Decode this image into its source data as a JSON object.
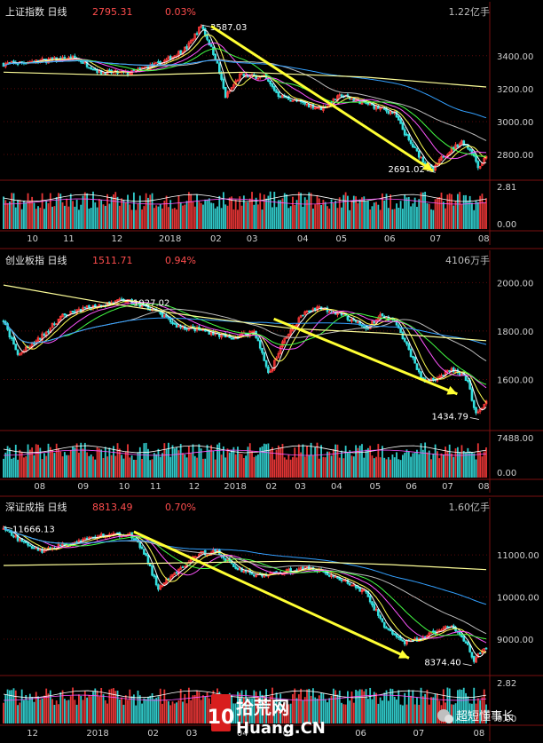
{
  "colors": {
    "background": "#000000",
    "panel_border": "#7a1010",
    "up": "#ff3b3b",
    "down": "#35e0e0",
    "arrow": "#ffff33",
    "ma_white": "#ffffff",
    "ma_yellow": "#ffff55",
    "ma_magenta": "#ff55ff",
    "ma_green": "#44ff44",
    "ma_gray": "#bbbbbb",
    "ma_blue": "#33a0ff",
    "ma_lightyellow": "#ffff99",
    "header_value": "#ff4d4d"
  },
  "watermark": {
    "site_cn": "拾荒网",
    "site_en": "Huang.CN",
    "logo_text": "10",
    "account": "超短懂事长",
    "icon": "wechat-icon"
  },
  "chart_data": [
    {
      "type": "candlestick",
      "name": "上证指数",
      "period": "日线",
      "last": "2795.31",
      "change_pct": "0.03%",
      "volume_label": "1.22亿手",
      "y_ticks": [
        3400,
        3200,
        3000,
        2800
      ],
      "y_tick_labels": [
        "3400.00",
        "3200.00",
        "3000.00",
        "2800.00"
      ],
      "ylim": [
        2660,
        3620
      ],
      "vol_ticks": [
        "2.81",
        "0.00"
      ],
      "vol_max": 2.81,
      "x_ticks": [
        {
          "label": "10",
          "t": 0.06
        },
        {
          "label": "11",
          "t": 0.135
        },
        {
          "label": "12",
          "t": 0.235
        },
        {
          "label": "2018",
          "t": 0.345
        },
        {
          "label": "02",
          "t": 0.44
        },
        {
          "label": "03",
          "t": 0.515
        },
        {
          "label": "04",
          "t": 0.62
        },
        {
          "label": "05",
          "t": 0.7
        },
        {
          "label": "06",
          "t": 0.8
        },
        {
          "label": "07",
          "t": 0.895
        },
        {
          "label": "08",
          "t": 0.995
        }
      ],
      "keypoints": [
        [
          0,
          3350
        ],
        [
          0.08,
          3370
        ],
        [
          0.15,
          3385
        ],
        [
          0.2,
          3300
        ],
        [
          0.26,
          3295
        ],
        [
          0.33,
          3360
        ],
        [
          0.38,
          3450
        ],
        [
          0.41,
          3587
        ],
        [
          0.44,
          3380
        ],
        [
          0.46,
          3150
        ],
        [
          0.49,
          3280
        ],
        [
          0.54,
          3270
        ],
        [
          0.57,
          3160
        ],
        [
          0.62,
          3110
        ],
        [
          0.66,
          3080
        ],
        [
          0.7,
          3160
        ],
        [
          0.74,
          3120
        ],
        [
          0.78,
          3080
        ],
        [
          0.81,
          3050
        ],
        [
          0.84,
          2880
        ],
        [
          0.87,
          2760
        ],
        [
          0.89,
          2700
        ],
        [
          0.91,
          2790
        ],
        [
          0.95,
          2880
        ],
        [
          0.97,
          2820
        ],
        [
          0.985,
          2720
        ],
        [
          1.0,
          2795
        ]
      ],
      "high_annotation": {
        "text": "3587.03",
        "t": 0.41,
        "value": 3587.03
      },
      "low_annotation": {
        "text": "2691.02",
        "t": 0.895,
        "value": 2691.02
      },
      "arrow": {
        "from": [
          0.43,
          3580
        ],
        "to": [
          0.89,
          2700
        ]
      },
      "long_ma": [
        [
          0,
          3300
        ],
        [
          0.25,
          3280
        ],
        [
          0.5,
          3300
        ],
        [
          0.75,
          3270
        ],
        [
          1.0,
          3210
        ]
      ]
    },
    {
      "type": "candlestick",
      "name": "创业板指",
      "period": "日线",
      "last": "1511.71",
      "change_pct": "0.94%",
      "volume_label": "4106万手",
      "y_ticks": [
        2000,
        1800,
        1600
      ],
      "y_tick_labels": [
        "2000.00",
        "1800.00",
        "1600.00"
      ],
      "ylim": [
        1400,
        2060
      ],
      "vol_ticks": [
        "7488.00",
        "0.00"
      ],
      "vol_max": 7488,
      "x_ticks": [
        {
          "label": "08",
          "t": 0.075
        },
        {
          "label": "09",
          "t": 0.165
        },
        {
          "label": "10",
          "t": 0.25
        },
        {
          "label": "11",
          "t": 0.315
        },
        {
          "label": "12",
          "t": 0.395
        },
        {
          "label": "2018",
          "t": 0.48
        },
        {
          "label": "02",
          "t": 0.555
        },
        {
          "label": "03",
          "t": 0.615
        },
        {
          "label": "04",
          "t": 0.69
        },
        {
          "label": "05",
          "t": 0.77
        },
        {
          "label": "06",
          "t": 0.845
        },
        {
          "label": "07",
          "t": 0.92
        },
        {
          "label": "08",
          "t": 0.995
        }
      ],
      "keypoints": [
        [
          0,
          1840
        ],
        [
          0.03,
          1700
        ],
        [
          0.07,
          1760
        ],
        [
          0.12,
          1860
        ],
        [
          0.18,
          1900
        ],
        [
          0.25,
          1927
        ],
        [
          0.31,
          1890
        ],
        [
          0.36,
          1820
        ],
        [
          0.42,
          1800
        ],
        [
          0.47,
          1770
        ],
        [
          0.52,
          1800
        ],
        [
          0.55,
          1620
        ],
        [
          0.58,
          1760
        ],
        [
          0.62,
          1870
        ],
        [
          0.65,
          1900
        ],
        [
          0.7,
          1870
        ],
        [
          0.75,
          1810
        ],
        [
          0.78,
          1860
        ],
        [
          0.81,
          1840
        ],
        [
          0.84,
          1720
        ],
        [
          0.87,
          1590
        ],
        [
          0.9,
          1610
        ],
        [
          0.93,
          1640
        ],
        [
          0.96,
          1600
        ],
        [
          0.98,
          1450
        ],
        [
          1.0,
          1512
        ]
      ],
      "high_annotation": {
        "text": "1927.02",
        "t": 0.25,
        "value": 1927.02
      },
      "low_annotation": {
        "text": "1434.79",
        "t": 0.985,
        "value": 1434.79
      },
      "arrow": {
        "from": [
          0.56,
          1850
        ],
        "to": [
          0.94,
          1540
        ]
      },
      "long_ma": [
        [
          0,
          1990
        ],
        [
          0.2,
          1920
        ],
        [
          0.4,
          1860
        ],
        [
          0.6,
          1810
        ],
        [
          0.8,
          1790
        ],
        [
          1.0,
          1760
        ]
      ]
    },
    {
      "type": "candlestick",
      "name": "深证成指",
      "period": "日线",
      "last": "8813.49",
      "change_pct": "0.70%",
      "volume_label": "1.60亿手",
      "y_ticks": [
        11000,
        10000,
        9000
      ],
      "y_tick_labels": [
        "11000.00",
        "10000.00",
        "9000.00"
      ],
      "ylim": [
        8200,
        11950
      ],
      "vol_ticks": [
        "2.82",
        "0.00"
      ],
      "vol_max": 2.82,
      "x_ticks": [
        {
          "label": "12",
          "t": 0.06
        },
        {
          "label": "2018",
          "t": 0.195
        },
        {
          "label": "02",
          "t": 0.31
        },
        {
          "label": "03",
          "t": 0.39
        },
        {
          "label": "04",
          "t": 0.495
        },
        {
          "label": "05",
          "t": 0.59
        },
        {
          "label": "06",
          "t": 0.74
        },
        {
          "label": "07",
          "t": 0.86
        },
        {
          "label": "08",
          "t": 0.985
        }
      ],
      "keypoints": [
        [
          0,
          11600
        ],
        [
          0.04,
          11300
        ],
        [
          0.08,
          11100
        ],
        [
          0.14,
          11300
        ],
        [
          0.2,
          11450
        ],
        [
          0.26,
          11500
        ],
        [
          0.29,
          11100
        ],
        [
          0.32,
          10200
        ],
        [
          0.35,
          10500
        ],
        [
          0.4,
          11000
        ],
        [
          0.44,
          11100
        ],
        [
          0.48,
          10700
        ],
        [
          0.53,
          10500
        ],
        [
          0.58,
          10600
        ],
        [
          0.64,
          10700
        ],
        [
          0.68,
          10500
        ],
        [
          0.72,
          10300
        ],
        [
          0.75,
          10100
        ],
        [
          0.79,
          9300
        ],
        [
          0.83,
          8900
        ],
        [
          0.86,
          9000
        ],
        [
          0.9,
          9200
        ],
        [
          0.93,
          9300
        ],
        [
          0.96,
          8900
        ],
        [
          0.975,
          8500
        ],
        [
          1.0,
          8813
        ]
      ],
      "high_annotation": {
        "text": "11666.13",
        "t": 0.0,
        "value": 11666.13
      },
      "low_annotation": {
        "text": "8374.40",
        "t": 0.97,
        "value": 8374.4
      },
      "arrow": {
        "from": [
          0.27,
          11550
        ],
        "to": [
          0.84,
          8550
        ]
      },
      "long_ma": [
        [
          0,
          10750
        ],
        [
          0.3,
          10800
        ],
        [
          0.6,
          10850
        ],
        [
          0.8,
          10770
        ],
        [
          1.0,
          10650
        ]
      ]
    }
  ]
}
